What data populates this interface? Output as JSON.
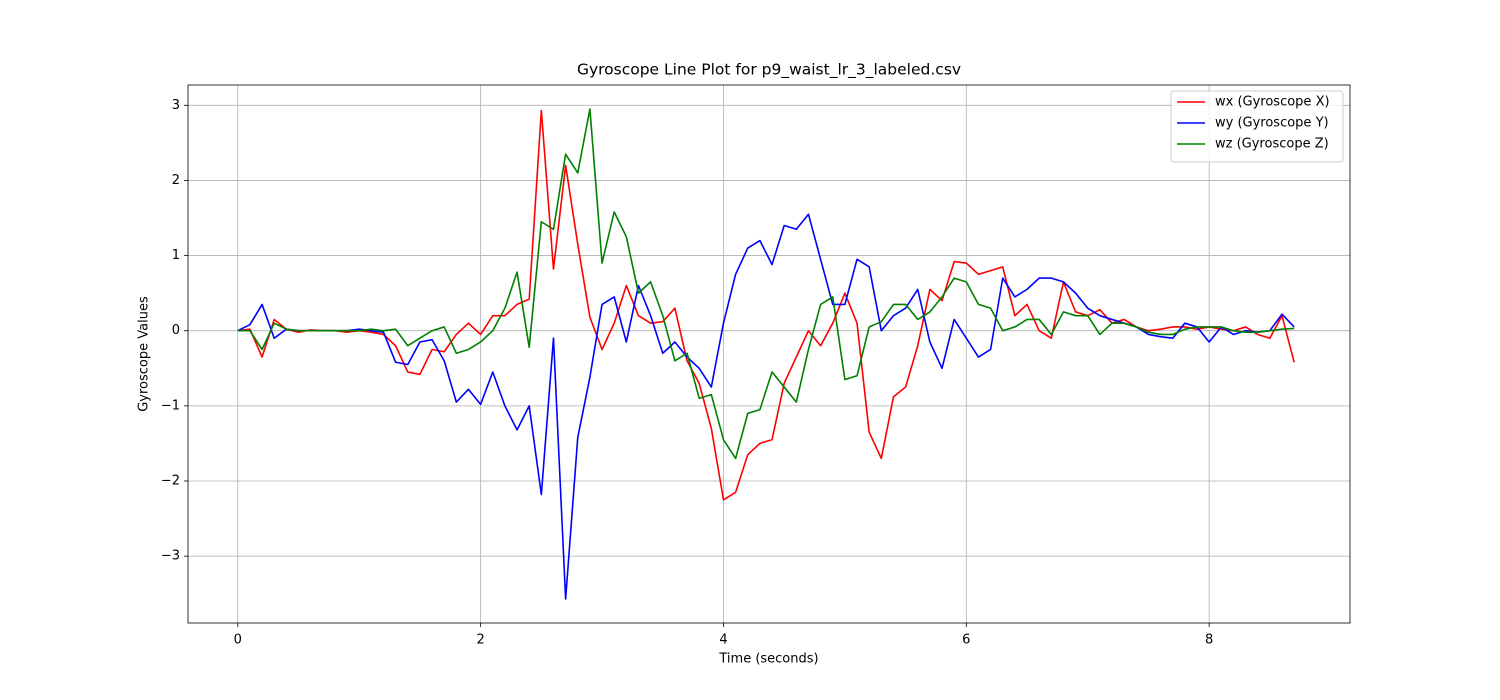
{
  "chart_data": {
    "type": "line",
    "title": "Gyroscope Line Plot for p9_waist_lr_3_labeled.csv",
    "xlabel": "Time (seconds)",
    "ylabel": "Gyroscope Values",
    "x": [
      0,
      0.1,
      0.2,
      0.3,
      0.4,
      0.5,
      0.6,
      0.7,
      0.8,
      0.9,
      1.0,
      1.1,
      1.2,
      1.3,
      1.4,
      1.5,
      1.6,
      1.7,
      1.8,
      1.9,
      2.0,
      2.1,
      2.2,
      2.3,
      2.4,
      2.5,
      2.6,
      2.7,
      2.8,
      2.9,
      3.0,
      3.1,
      3.2,
      3.3,
      3.4,
      3.5,
      3.6,
      3.7,
      3.8,
      3.9,
      4.0,
      4.1,
      4.2,
      4.3,
      4.4,
      4.5,
      4.6,
      4.7,
      4.8,
      4.9,
      5.0,
      5.1,
      5.2,
      5.3,
      5.4,
      5.5,
      5.6,
      5.7,
      5.8,
      5.9,
      6.0,
      6.1,
      6.2,
      6.3,
      6.4,
      6.5,
      6.6,
      6.7,
      6.8,
      6.9,
      7.0,
      7.1,
      7.2,
      7.3,
      7.4,
      7.5,
      7.6,
      7.7,
      7.8,
      7.9,
      8.0,
      8.1,
      8.2,
      8.3,
      8.4,
      8.5,
      8.6,
      8.7
    ],
    "series": [
      {
        "name": "wx (Gyroscope X)",
        "color": "#ff0000",
        "values": [
          0,
          0.02,
          -0.35,
          0.15,
          0.02,
          -0.02,
          0.01,
          0,
          0,
          -0.02,
          0,
          -0.02,
          -0.05,
          -0.2,
          -0.55,
          -0.58,
          -0.25,
          -0.28,
          -0.05,
          0.1,
          -0.05,
          0.2,
          0.2,
          0.35,
          0.42,
          2.93,
          0.82,
          2.2,
          1.15,
          0.18,
          -0.25,
          0.1,
          0.6,
          0.2,
          0.1,
          0.12,
          0.3,
          -0.4,
          -0.7,
          -1.3,
          -2.25,
          -2.15,
          -1.65,
          -1.5,
          -1.45,
          -0.7,
          -0.35,
          0,
          -0.2,
          0.1,
          0.5,
          0.1,
          -1.35,
          -1.7,
          -0.88,
          -0.75,
          -0.2,
          0.55,
          0.4,
          0.92,
          0.9,
          0.75,
          0.8,
          0.85,
          0.2,
          0.35,
          0,
          -0.1,
          0.65,
          0.25,
          0.2,
          0.28,
          0.1,
          0.15,
          0.05,
          0,
          0.02,
          0.05,
          0.05,
          0.02,
          0.05,
          0.02,
          0,
          0.05,
          -0.05,
          -0.1,
          0.2,
          -0.42
        ]
      },
      {
        "name": "wy (Gyroscope Y)",
        "color": "#0000ff",
        "values": [
          0,
          0.08,
          0.35,
          -0.1,
          0.02,
          0,
          0,
          0,
          0,
          0,
          0.02,
          0,
          -0.02,
          -0.42,
          -0.45,
          -0.15,
          -0.12,
          -0.4,
          -0.95,
          -0.78,
          -0.98,
          -0.55,
          -1.0,
          -1.32,
          -1.0,
          -2.18,
          -0.1,
          -3.57,
          -1.42,
          -0.62,
          0.35,
          0.45,
          -0.15,
          0.6,
          0.2,
          -0.3,
          -0.15,
          -0.35,
          -0.5,
          -0.75,
          0.1,
          0.75,
          1.1,
          1.2,
          0.88,
          1.4,
          1.35,
          1.55,
          0.95,
          0.35,
          0.35,
          0.95,
          0.85,
          0,
          0.2,
          0.3,
          0.55,
          -0.15,
          -0.5,
          0.15,
          -0.1,
          -0.35,
          -0.25,
          0.7,
          0.45,
          0.55,
          0.7,
          0.7,
          0.65,
          0.5,
          0.3,
          0.2,
          0.15,
          0.1,
          0.05,
          -0.05,
          -0.08,
          -0.1,
          0.1,
          0.05,
          -0.15,
          0.05,
          -0.05,
          0,
          -0.02,
          0,
          0.22,
          0.05
        ]
      },
      {
        "name": "wz (Gyroscope Z)",
        "color": "#008000",
        "values": [
          0,
          0,
          -0.25,
          0.1,
          0.02,
          0,
          0,
          0,
          0,
          0,
          0,
          0.02,
          0,
          0.02,
          -0.2,
          -0.1,
          0,
          0.05,
          -0.3,
          -0.25,
          -0.15,
          0,
          0.3,
          0.78,
          -0.22,
          1.45,
          1.35,
          2.35,
          2.1,
          2.95,
          0.9,
          1.58,
          1.25,
          0.5,
          0.65,
          0.2,
          -0.4,
          -0.3,
          -0.9,
          -0.85,
          -1.45,
          -1.7,
          -1.1,
          -1.05,
          -0.55,
          -0.75,
          -0.95,
          -0.25,
          0.35,
          0.45,
          -0.65,
          -0.6,
          0.05,
          0.12,
          0.35,
          0.35,
          0.15,
          0.25,
          0.45,
          0.7,
          0.65,
          0.35,
          0.3,
          0,
          0.05,
          0.15,
          0.15,
          -0.05,
          0.25,
          0.2,
          0.2,
          -0.05,
          0.1,
          0.1,
          0.05,
          -0.02,
          -0.05,
          -0.05,
          0.02,
          0.05,
          0.05,
          0.05,
          0,
          -0.02,
          -0.02,
          0,
          0.02,
          0.03
        ]
      }
    ],
    "xlim": [
      -0.41,
      9.16
    ],
    "ylim": [
      -3.89,
      3.27
    ],
    "xticks": [
      0,
      2,
      4,
      6,
      8
    ],
    "yticks": [
      {
        "value": -3,
        "label": "−3"
      },
      {
        "value": -2,
        "label": "−2"
      },
      {
        "value": -1,
        "label": "−1"
      },
      0,
      1,
      2,
      3
    ],
    "grid": true,
    "legend": "upper right"
  }
}
